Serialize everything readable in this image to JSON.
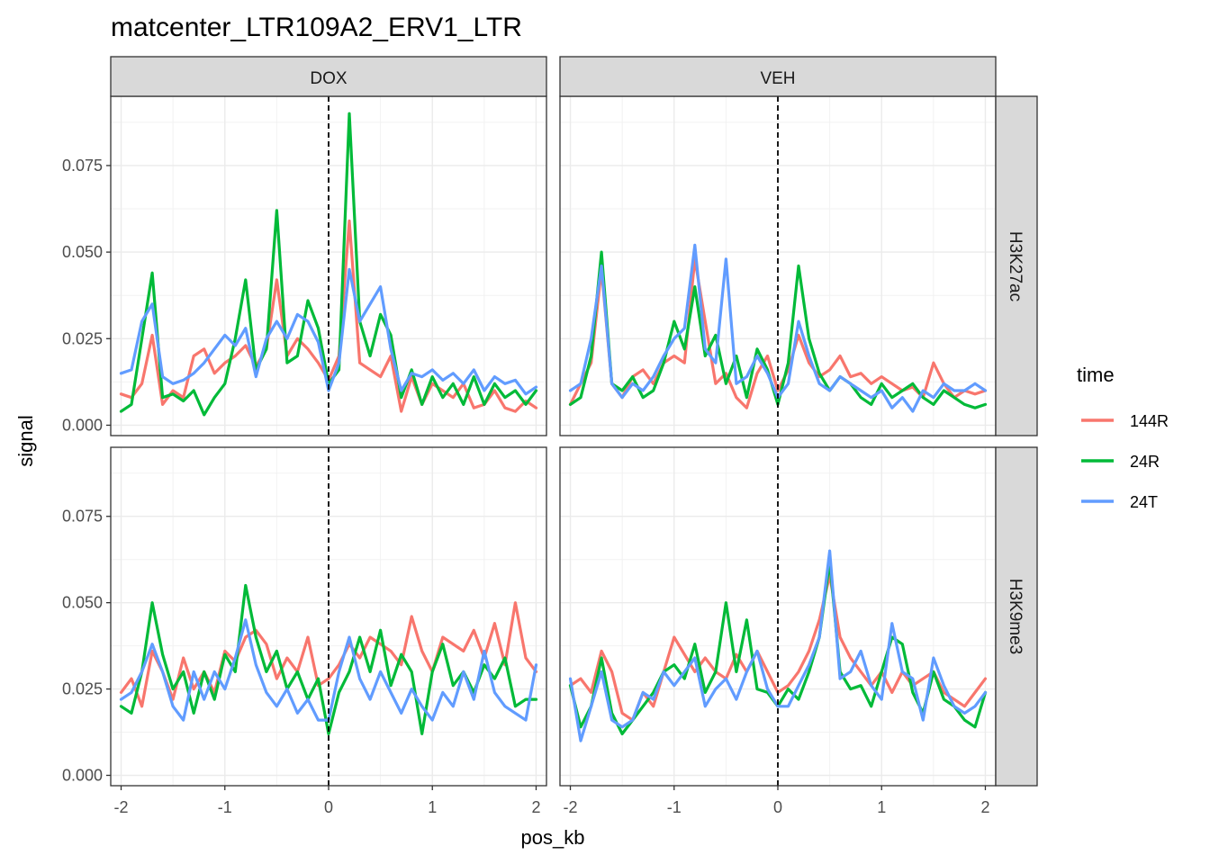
{
  "chart_data": {
    "type": "line",
    "title": "matcenter_LTR109A2_ERV1_LTR",
    "xlabel": "pos_kb",
    "ylabel": "signal",
    "xlim": [
      -2.1,
      2.1
    ],
    "ylim": [
      -0.003,
      0.095
    ],
    "x_ticks": [
      -2,
      -1,
      0,
      1,
      2
    ],
    "x_tick_labels": [
      "-2",
      "-1",
      "0",
      "1",
      "2"
    ],
    "y_ticks": [
      0,
      0.025,
      0.05,
      0.075
    ],
    "y_tick_labels": [
      "0.000",
      "0.025",
      "0.050",
      "0.075"
    ],
    "grid": true,
    "vline_x": 0,
    "facet_cols": [
      "DOX",
      "VEH"
    ],
    "facet_rows": [
      "H3K27ac",
      "H3K9me3"
    ],
    "legend": {
      "title": "time",
      "position": "right",
      "entries": [
        {
          "label": "144R",
          "color": "#F8766D"
        },
        {
          "label": "24R",
          "color": "#00BA38"
        },
        {
          "label": "24T",
          "color": "#619CFF"
        }
      ]
    },
    "x": [
      -2.0,
      -1.9,
      -1.8,
      -1.7,
      -1.6,
      -1.5,
      -1.4,
      -1.3,
      -1.2,
      -1.1,
      -1.0,
      -0.9,
      -0.8,
      -0.7,
      -0.6,
      -0.5,
      -0.4,
      -0.3,
      -0.2,
      -0.1,
      0.0,
      0.1,
      0.2,
      0.3,
      0.4,
      0.5,
      0.6,
      0.7,
      0.8,
      0.9,
      1.0,
      1.1,
      1.2,
      1.3,
      1.4,
      1.5,
      1.6,
      1.7,
      1.8,
      1.9,
      2.0
    ],
    "panels": [
      {
        "col": "DOX",
        "row": "H3K27ac",
        "series": [
          {
            "time": "144R",
            "values": [
              0.009,
              0.008,
              0.012,
              0.026,
              0.006,
              0.01,
              0.008,
              0.02,
              0.022,
              0.015,
              0.018,
              0.02,
              0.023,
              0.017,
              0.022,
              0.042,
              0.02,
              0.025,
              0.022,
              0.018,
              0.013,
              0.02,
              0.059,
              0.018,
              0.016,
              0.014,
              0.02,
              0.004,
              0.014,
              0.006,
              0.012,
              0.01,
              0.008,
              0.012,
              0.005,
              0.006,
              0.01,
              0.005,
              0.004,
              0.007,
              0.005
            ]
          },
          {
            "time": "24R",
            "values": [
              0.004,
              0.006,
              0.025,
              0.044,
              0.008,
              0.009,
              0.007,
              0.01,
              0.003,
              0.008,
              0.012,
              0.025,
              0.042,
              0.016,
              0.022,
              0.062,
              0.018,
              0.02,
              0.036,
              0.028,
              0.012,
              0.016,
              0.09,
              0.03,
              0.02,
              0.032,
              0.026,
              0.008,
              0.016,
              0.006,
              0.014,
              0.008,
              0.012,
              0.006,
              0.014,
              0.006,
              0.012,
              0.008,
              0.01,
              0.006,
              0.01
            ]
          },
          {
            "time": "24T",
            "values": [
              0.015,
              0.016,
              0.03,
              0.035,
              0.014,
              0.012,
              0.013,
              0.015,
              0.018,
              0.022,
              0.026,
              0.023,
              0.028,
              0.014,
              0.025,
              0.03,
              0.025,
              0.032,
              0.03,
              0.024,
              0.01,
              0.018,
              0.045,
              0.03,
              0.035,
              0.04,
              0.022,
              0.01,
              0.015,
              0.014,
              0.016,
              0.013,
              0.015,
              0.012,
              0.016,
              0.01,
              0.014,
              0.012,
              0.013,
              0.009,
              0.011
            ]
          }
        ]
      },
      {
        "col": "VEH",
        "row": "H3K27ac",
        "series": [
          {
            "time": "144R",
            "values": [
              0.006,
              0.012,
              0.018,
              0.045,
              0.012,
              0.008,
              0.014,
              0.016,
              0.012,
              0.018,
              0.02,
              0.018,
              0.048,
              0.03,
              0.012,
              0.015,
              0.008,
              0.005,
              0.015,
              0.02,
              0.01,
              0.016,
              0.026,
              0.018,
              0.014,
              0.016,
              0.02,
              0.014,
              0.015,
              0.012,
              0.014,
              0.012,
              0.01,
              0.011,
              0.008,
              0.018,
              0.012,
              0.008,
              0.01,
              0.009,
              0.01
            ]
          },
          {
            "time": "24R",
            "values": [
              0.006,
              0.008,
              0.02,
              0.05,
              0.012,
              0.01,
              0.014,
              0.008,
              0.01,
              0.018,
              0.03,
              0.022,
              0.04,
              0.02,
              0.026,
              0.012,
              0.02,
              0.008,
              0.022,
              0.016,
              0.006,
              0.018,
              0.046,
              0.025,
              0.015,
              0.01,
              0.014,
              0.012,
              0.008,
              0.006,
              0.012,
              0.008,
              0.01,
              0.012,
              0.008,
              0.006,
              0.01,
              0.008,
              0.006,
              0.005,
              0.006
            ]
          },
          {
            "time": "24T",
            "values": [
              0.01,
              0.012,
              0.025,
              0.046,
              0.012,
              0.008,
              0.012,
              0.01,
              0.014,
              0.02,
              0.025,
              0.028,
              0.052,
              0.022,
              0.018,
              0.048,
              0.012,
              0.014,
              0.02,
              0.015,
              0.008,
              0.012,
              0.03,
              0.02,
              0.012,
              0.01,
              0.014,
              0.012,
              0.01,
              0.008,
              0.01,
              0.005,
              0.008,
              0.004,
              0.01,
              0.008,
              0.012,
              0.01,
              0.01,
              0.012,
              0.01
            ]
          }
        ]
      },
      {
        "col": "DOX",
        "row": "H3K9me3",
        "series": [
          {
            "time": "144R",
            "values": [
              0.024,
              0.028,
              0.02,
              0.036,
              0.03,
              0.022,
              0.034,
              0.025,
              0.03,
              0.024,
              0.036,
              0.033,
              0.04,
              0.042,
              0.038,
              0.028,
              0.034,
              0.03,
              0.04,
              0.026,
              0.028,
              0.032,
              0.038,
              0.034,
              0.04,
              0.038,
              0.036,
              0.032,
              0.046,
              0.036,
              0.03,
              0.04,
              0.038,
              0.036,
              0.042,
              0.034,
              0.044,
              0.032,
              0.05,
              0.034,
              0.03
            ]
          },
          {
            "time": "24R",
            "values": [
              0.02,
              0.018,
              0.03,
              0.05,
              0.035,
              0.025,
              0.03,
              0.018,
              0.03,
              0.022,
              0.035,
              0.03,
              0.055,
              0.04,
              0.03,
              0.036,
              0.025,
              0.03,
              0.022,
              0.028,
              0.012,
              0.024,
              0.03,
              0.04,
              0.03,
              0.042,
              0.026,
              0.035,
              0.03,
              0.012,
              0.03,
              0.038,
              0.026,
              0.03,
              0.024,
              0.032,
              0.028,
              0.034,
              0.02,
              0.022,
              0.022
            ]
          },
          {
            "time": "24T",
            "values": [
              0.022,
              0.024,
              0.03,
              0.038,
              0.03,
              0.02,
              0.016,
              0.03,
              0.022,
              0.03,
              0.025,
              0.034,
              0.045,
              0.032,
              0.024,
              0.02,
              0.025,
              0.018,
              0.022,
              0.016,
              0.016,
              0.03,
              0.04,
              0.028,
              0.022,
              0.03,
              0.024,
              0.018,
              0.025,
              0.02,
              0.016,
              0.024,
              0.02,
              0.03,
              0.022,
              0.036,
              0.024,
              0.02,
              0.018,
              0.016,
              0.032
            ]
          }
        ]
      },
      {
        "col": "VEH",
        "row": "H3K9me3",
        "series": [
          {
            "time": "144R",
            "values": [
              0.026,
              0.028,
              0.024,
              0.036,
              0.03,
              0.018,
              0.016,
              0.024,
              0.02,
              0.03,
              0.04,
              0.035,
              0.03,
              0.034,
              0.03,
              0.028,
              0.035,
              0.03,
              0.036,
              0.03,
              0.024,
              0.026,
              0.03,
              0.036,
              0.045,
              0.058,
              0.04,
              0.034,
              0.03,
              0.026,
              0.03,
              0.024,
              0.03,
              0.026,
              0.028,
              0.03,
              0.024,
              0.022,
              0.02,
              0.024,
              0.028
            ]
          },
          {
            "time": "24R",
            "values": [
              0.026,
              0.014,
              0.02,
              0.034,
              0.018,
              0.012,
              0.016,
              0.02,
              0.024,
              0.03,
              0.032,
              0.028,
              0.038,
              0.024,
              0.03,
              0.05,
              0.03,
              0.045,
              0.025,
              0.024,
              0.02,
              0.025,
              0.022,
              0.03,
              0.04,
              0.062,
              0.03,
              0.025,
              0.026,
              0.02,
              0.03,
              0.04,
              0.038,
              0.024,
              0.018,
              0.03,
              0.022,
              0.02,
              0.016,
              0.014,
              0.024
            ]
          },
          {
            "time": "24T",
            "values": [
              0.028,
              0.01,
              0.02,
              0.03,
              0.016,
              0.014,
              0.016,
              0.024,
              0.022,
              0.03,
              0.026,
              0.03,
              0.034,
              0.02,
              0.025,
              0.028,
              0.022,
              0.03,
              0.036,
              0.025,
              0.02,
              0.02,
              0.026,
              0.032,
              0.04,
              0.065,
              0.028,
              0.03,
              0.036,
              0.026,
              0.022,
              0.044,
              0.03,
              0.028,
              0.016,
              0.034,
              0.026,
              0.02,
              0.018,
              0.02,
              0.024
            ]
          }
        ]
      }
    ]
  }
}
